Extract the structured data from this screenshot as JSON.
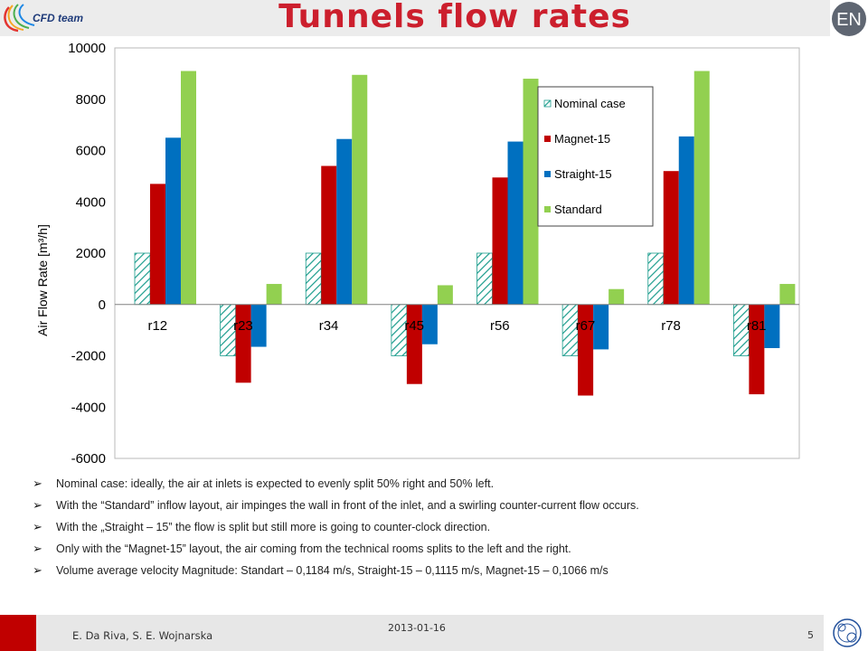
{
  "header": {
    "title": "Tunnels flow rates",
    "logo_left_text": "CFD team",
    "logo_right_text": "EN"
  },
  "colors": {
    "title": "#cc1f2d",
    "nominal_hatch": "#1a9c8c",
    "magnet": "#c00000",
    "straight": "#0070c0",
    "standard": "#92d050"
  },
  "chart_data": {
    "type": "bar",
    "categories": [
      "r12",
      "r23",
      "r34",
      "r45",
      "r56",
      "r67",
      "r78",
      "r81"
    ],
    "ylabel": "Air Flow Rate [m³/h]",
    "ylim": [
      -6000,
      10000
    ],
    "yticks": [
      10000,
      8000,
      6000,
      4000,
      2000,
      0,
      -2000,
      -4000,
      -6000
    ],
    "legend_position": "top-right",
    "series": [
      {
        "name": "Nominal case",
        "pattern": "hatched",
        "values": [
          2000,
          -2000,
          2000,
          -2000,
          2000,
          -2000,
          2000,
          -2000
        ]
      },
      {
        "name": "Magnet-15",
        "values": [
          4700,
          -3050,
          5400,
          -3100,
          4950,
          -3550,
          5200,
          -3500
        ]
      },
      {
        "name": "Straight-15",
        "values": [
          6500,
          -1650,
          6450,
          -1550,
          6350,
          -1750,
          6550,
          -1700
        ]
      },
      {
        "name": "Standard",
        "values": [
          9100,
          800,
          8950,
          750,
          8800,
          600,
          9100,
          800
        ]
      }
    ]
  },
  "bullets": [
    "Nominal case: ideally, the air at inlets is expected to evenly split 50% right and 50% left.",
    "With the “Standard” inflow layout, air impinges the wall in front of the inlet, and a swirling counter-current flow occurs.",
    "With the „Straight – 15” the flow is split but still more is going to counter-clock direction.",
    "Only with the “Magnet-15” layout, the air coming from the technical rooms splits to the left and the right.",
    "Volume average velocity Magnitude: Standart – 0,1184 m/s, Straight-15 – 0,1115 m/s, Magnet-15 – 0,1066 m/s"
  ],
  "footer": {
    "authors": "E. Da Riva, S. E. Wojnarska",
    "date": "2013-01-16",
    "page": "5"
  }
}
